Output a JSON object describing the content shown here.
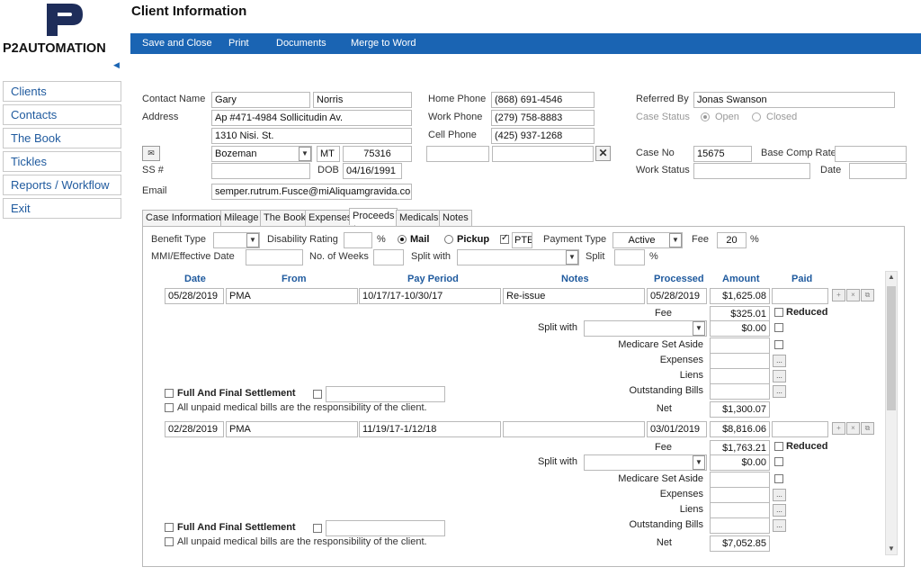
{
  "brand": {
    "logo_text": "P2AUTOMATION",
    "colors": {
      "accent": "#1a64b3",
      "logo_dark": "#1e2d5a"
    }
  },
  "page_title": "Client Information",
  "toolbar": {
    "save_close": "Save and Close",
    "print": "Print",
    "documents": "Documents",
    "merge": "Merge to Word"
  },
  "sidebar": {
    "items": [
      "Clients",
      "Contacts",
      "The Book",
      "Tickles",
      "Reports / Workflow",
      "Exit"
    ]
  },
  "client": {
    "contact_name_label": "Contact Name",
    "first_name": "Gary",
    "last_name": "Norris",
    "address_label": "Address",
    "address1": "Ap #471-4984 Sollicitudin Av.",
    "address2": "1310 Nisi. St.",
    "city": "Bozeman",
    "state": "MT",
    "zip": "75316",
    "ssn_label": "SS #",
    "ssn": "",
    "dob_label": "DOB",
    "dob": "04/16/1991",
    "email_label": "Email",
    "email": "semper.rutrum.Fusce@miAliquamgravida.co.u",
    "home_phone_label": "Home Phone",
    "home_phone": "(868) 691-4546",
    "work_phone_label": "Work Phone",
    "work_phone": "(279) 758-8883",
    "cell_phone_label": "Cell Phone",
    "cell_phone": "(425) 937-1268",
    "referred_by_label": "Referred By",
    "referred_by": "Jonas Swanson",
    "case_status_label": "Case Status",
    "case_status_open": "Open",
    "case_status_closed": "Closed",
    "case_no_label": "Case No",
    "case_no": "15675",
    "base_comp_rate_label": "Base Comp Rate",
    "base_comp_rate": "",
    "work_status_label": "Work Status",
    "work_status": "",
    "date_label": "Date",
    "date": ""
  },
  "tabs": [
    "Case Information",
    "Mileage",
    "The Book",
    "Expenses",
    "Proceeds",
    "Medicals",
    "Notes"
  ],
  "active_tab": "Proceeds",
  "proceeds": {
    "benefit_type_label": "Benefit Type",
    "benefit_type": "",
    "disability_rating_label": "Disability Rating",
    "disability_rating": "",
    "pct": "%",
    "mail_label": "Mail",
    "pickup_label": "Pickup",
    "pte_label": "PTE",
    "payment_type_label": "Payment Type",
    "payment_type": "Active",
    "fee_label": "Fee",
    "fee": "20",
    "fee_pct": "%",
    "mmi_label": "MMI/Effective Date",
    "mmi": "",
    "weeks_label": "No. of Weeks",
    "weeks": "",
    "split_with_label": "Split with",
    "split_with": "",
    "split_label": "Split",
    "split": "",
    "split_pct": "%",
    "columns": [
      "Date",
      "From",
      "Pay Period",
      "Notes",
      "Processed",
      "Amount",
      "Paid"
    ],
    "labels": {
      "fee": "Fee",
      "reduced": "Reduced",
      "split_with": "Split with",
      "medicare": "Medicare Set Aside",
      "expenses": "Expenses",
      "liens": "Liens",
      "outstanding": "Outstanding Bills",
      "net": "Net",
      "full_final": "Full And Final Settlement",
      "unpaid": "All unpaid medical bills are the responsibility of the client.",
      "ellipsis": "..."
    },
    "entries": [
      {
        "date": "05/28/2019",
        "from": "PMA",
        "pay_period": "10/17/17-10/30/17",
        "notes": "Re-issue",
        "processed": "05/28/2019",
        "amount": "$1,625.08",
        "fee": "$325.01",
        "split": "$0.00",
        "net": "$1,300.07"
      },
      {
        "date": "02/28/2019",
        "from": "PMA",
        "pay_period": "11/19/17-1/12/18",
        "notes": "",
        "processed": "03/01/2019",
        "amount": "$8,816.06",
        "fee": "$1,763.21",
        "split": "$0.00",
        "net": "$7,052.85"
      }
    ]
  }
}
